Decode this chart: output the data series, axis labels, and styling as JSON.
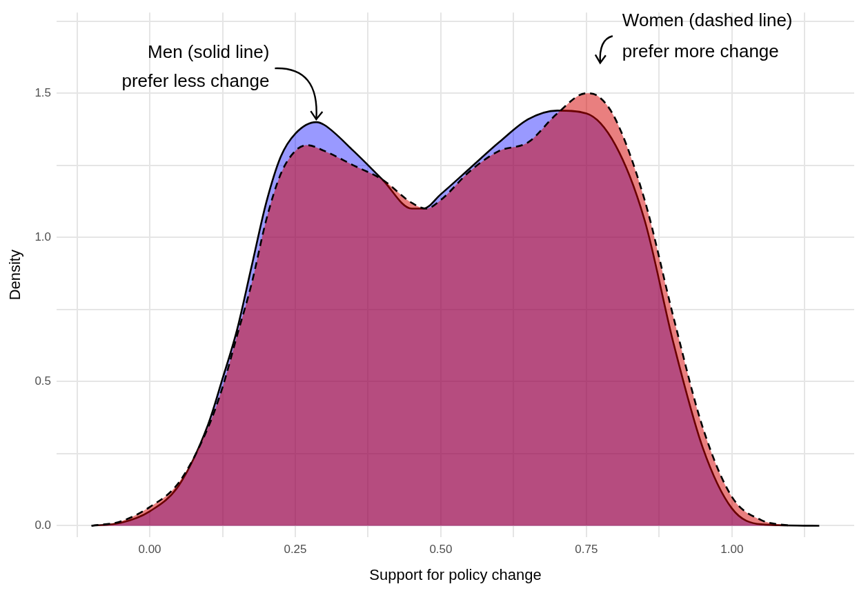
{
  "chart_data": {
    "type": "area",
    "xlabel": "Support for policy change",
    "ylabel": "Density",
    "xlim": [
      -0.16,
      1.21
    ],
    "ylim": [
      -0.04,
      1.78
    ],
    "xticks": [
      {
        "value": -0.125,
        "label": null
      },
      {
        "value": 0,
        "label": "0.00"
      },
      {
        "value": 0.125,
        "label": null
      },
      {
        "value": 0.25,
        "label": "0.25"
      },
      {
        "value": 0.375,
        "label": null
      },
      {
        "value": 0.5,
        "label": "0.50"
      },
      {
        "value": 0.625,
        "label": null
      },
      {
        "value": 0.75,
        "label": "0.75"
      },
      {
        "value": 0.875,
        "label": null
      },
      {
        "value": 1,
        "label": "1.00"
      },
      {
        "value": 1.125,
        "label": null
      }
    ],
    "yticks": [
      {
        "value": 0,
        "label": "0.0"
      },
      {
        "value": 0.25,
        "label": null
      },
      0.5,
      {
        "value": 0.75,
        "label": null
      },
      {
        "value": 1,
        "label": "1.0"
      },
      {
        "value": 1.25,
        "label": null
      },
      1.5,
      {
        "value": 1.75,
        "label": null
      }
    ],
    "grid": true,
    "series": [
      {
        "color": "#0000ff",
        "line_style": "solid",
        "x": [
          -0.1,
          -0.05,
          0,
          0.05,
          0.1,
          0.125,
          0.15,
          0.175,
          0.2,
          0.225,
          0.25,
          0.286,
          0.3,
          0.35,
          0.4,
          0.45,
          0.47,
          0.5,
          0.55,
          0.6,
          0.65,
          0.7,
          0.75,
          0.8,
          0.85,
          0.9,
          0.95,
          1,
          1.05,
          1.15
        ],
        "values": [
          0,
          0.01,
          0.05,
          0.14,
          0.35,
          0.51,
          0.68,
          0.9,
          1.12,
          1.28,
          1.36,
          1.4,
          1.39,
          1.3,
          1.2,
          1.1,
          1.1,
          1.15,
          1.24,
          1.33,
          1.41,
          1.44,
          1.43,
          1.32,
          1.06,
          0.63,
          0.27,
          0.06,
          0.005,
          0
        ]
      },
      {
        "color": "#d40000",
        "line_style": "dashed",
        "x": [
          -0.1,
          -0.05,
          0,
          0.05,
          0.1,
          0.125,
          0.15,
          0.175,
          0.2,
          0.225,
          0.25,
          0.27,
          0.3,
          0.35,
          0.4,
          0.45,
          0.475,
          0.5,
          0.55,
          0.6,
          0.65,
          0.7,
          0.75,
          0.77,
          0.8,
          0.85,
          0.9,
          0.95,
          1,
          1.05,
          1.1
        ],
        "values": [
          0,
          0.015,
          0.065,
          0.15,
          0.34,
          0.48,
          0.66,
          0.84,
          1.06,
          1.22,
          1.3,
          1.32,
          1.3,
          1.25,
          1.2,
          1.12,
          1.1,
          1.13,
          1.23,
          1.3,
          1.33,
          1.43,
          1.5,
          1.49,
          1.41,
          1.13,
          0.72,
          0.34,
          0.1,
          0.02,
          0
        ]
      }
    ],
    "annotations": [
      {
        "text": "Men (solid line)\nprefer less change",
        "x": 0.286,
        "y": 1.4
      },
      {
        "text": "Women (dashed line)\nprefer more change",
        "x": 0.75,
        "y": 1.5
      }
    ]
  }
}
